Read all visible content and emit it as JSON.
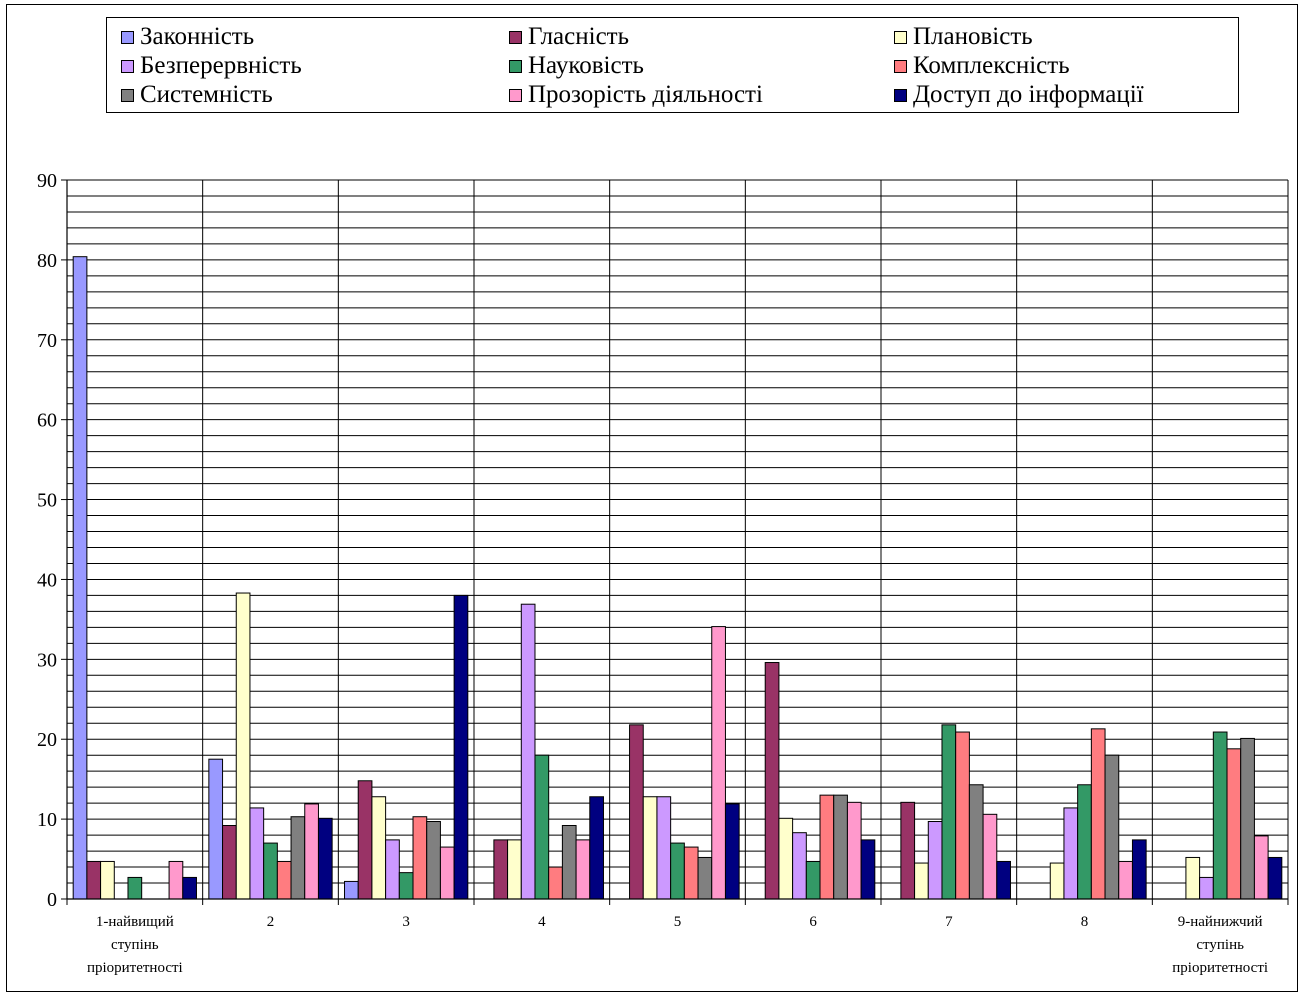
{
  "chart_data": {
    "type": "bar",
    "categories": [
      [
        "1-найвищий",
        "ступінь",
        "пріоритетності"
      ],
      [
        "2"
      ],
      [
        "3"
      ],
      [
        "4"
      ],
      [
        "5"
      ],
      [
        "6"
      ],
      [
        "7"
      ],
      [
        "8"
      ],
      [
        "9-найнижчий",
        "ступінь",
        "пріоритетності"
      ]
    ],
    "ylim": [
      0,
      90
    ],
    "yticks": [
      0,
      10,
      20,
      30,
      40,
      50,
      60,
      70,
      80,
      90
    ],
    "minor_grid_step": 2,
    "legend_position": "top",
    "series": [
      {
        "name": "Законність",
        "color": "#9999ff",
        "values": [
          80.4,
          17.5,
          2.2,
          0,
          0,
          0,
          0,
          0,
          0
        ]
      },
      {
        "name": "Гласність",
        "color": "#993366",
        "values": [
          4.7,
          9.2,
          14.8,
          7.4,
          21.8,
          29.6,
          12.1,
          0,
          0
        ]
      },
      {
        "name": "Плановість",
        "color": "#ffffcc",
        "values": [
          4.7,
          38.3,
          12.8,
          7.4,
          12.8,
          10.1,
          4.5,
          4.5,
          5.2
        ]
      },
      {
        "name": "Безперервність",
        "color": "#cc99ff",
        "values": [
          0,
          11.4,
          7.4,
          36.9,
          12.8,
          8.3,
          9.7,
          11.4,
          2.7
        ]
      },
      {
        "name": "Науковість",
        "color": "#339966",
        "values": [
          2.7,
          7.0,
          3.3,
          18.0,
          7.0,
          4.7,
          21.8,
          14.3,
          20.9
        ]
      },
      {
        "name": "Комплексність",
        "color": "#ff7c80",
        "values": [
          0,
          4.7,
          10.3,
          4.0,
          6.5,
          13.0,
          20.9,
          21.3,
          18.8
        ]
      },
      {
        "name": "Системність",
        "color": "#808080",
        "values": [
          0,
          10.3,
          9.7,
          9.2,
          5.2,
          13.0,
          14.3,
          18.0,
          20.1
        ]
      },
      {
        "name": "Прозорість діяльності",
        "color": "#ff99cc",
        "values": [
          4.7,
          11.9,
          6.5,
          7.4,
          34.1,
          12.1,
          10.6,
          4.7,
          7.9
        ]
      },
      {
        "name": "Доступ до інформації",
        "color": "#000080",
        "values": [
          2.7,
          10.1,
          38.0,
          12.8,
          11.9,
          7.4,
          4.7,
          7.4,
          5.2
        ]
      }
    ]
  }
}
